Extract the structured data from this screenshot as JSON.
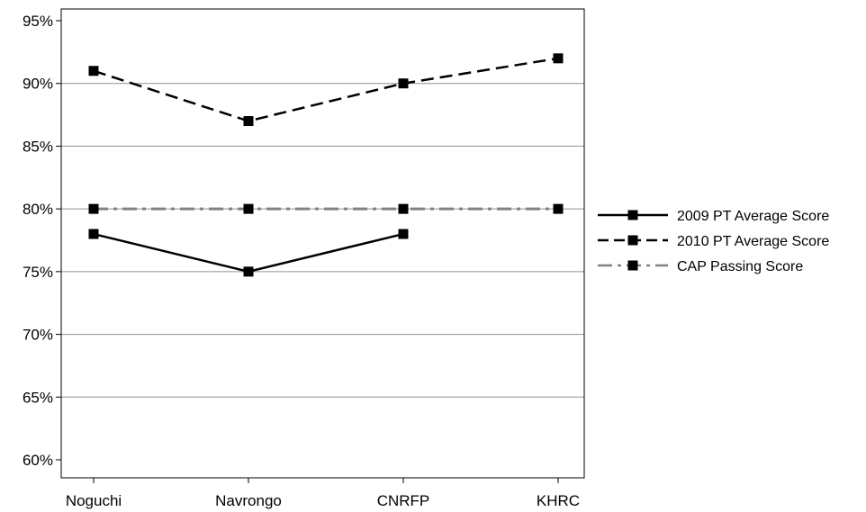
{
  "chart_data": {
    "type": "line",
    "title": "",
    "xlabel": "",
    "ylabel": "",
    "categories": [
      "Noguchi",
      "Navrongo",
      "CNRFP",
      "KHRC"
    ],
    "ylim": [
      60,
      95
    ],
    "yticks": [
      "60%",
      "65%",
      "70%",
      "75%",
      "80%",
      "85%",
      "90%",
      "95%"
    ],
    "ytick_values": [
      60,
      65,
      70,
      75,
      80,
      85,
      90,
      95
    ],
    "grid": true,
    "legend_position": "right",
    "series": [
      {
        "name": "2009 PT Average Score",
        "values": [
          78,
          75,
          78,
          null
        ],
        "color": "#000000",
        "line_style": "solid",
        "marker": "square"
      },
      {
        "name": "2010 PT Average Score",
        "values": [
          91,
          87,
          90,
          92
        ],
        "color": "#000000",
        "line_style": "dashed",
        "marker": "square"
      },
      {
        "name": "CAP Passing Score",
        "values": [
          80,
          80,
          80,
          80
        ],
        "color": "#808080",
        "line_style": "dash-dot",
        "marker": "square"
      }
    ]
  }
}
